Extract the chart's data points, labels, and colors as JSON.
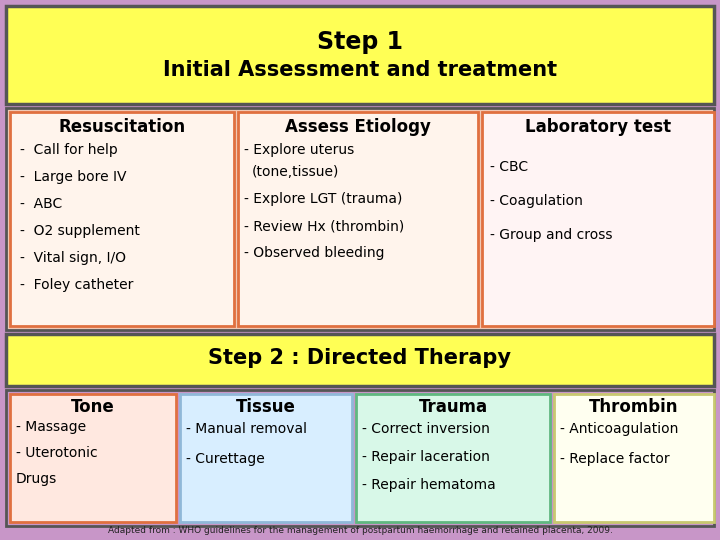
{
  "step1_title_line1": "Step 1",
  "step1_title_line2": "Initial Assessment and treatment",
  "step2_title": "Step 2 : Directed Therapy",
  "footer": "Adapted from : WHO guidelines for the management of postpartum haemorrhage and retained placenta, 2009.",
  "outer_bg": "#c896c8",
  "step1_bg": "#ffff55",
  "step2_bg": "#ffff55",
  "middle_bg": "#f0c8b4",
  "section1_bg": "#fff4ec",
  "section1_border": "#e07040",
  "section2_bg": "#fff4ec",
  "section2_border": "#e07040",
  "section3_bg": "#fff4f4",
  "section3_border": "#e07040",
  "tone_bg": "#ffe8e0",
  "tone_border": "#e07040",
  "tissue_bg": "#d8eeff",
  "tissue_border": "#90b8d8",
  "trauma_bg": "#d8f8e8",
  "trauma_border": "#60b880",
  "thrombin_bg": "#fffff0",
  "thrombin_border": "#c8c870",
  "col1_title": "Resuscitation",
  "col1_items": [
    "-  Call for help",
    "-  Large bore IV",
    "-  ABC",
    "-  O2 supplement",
    "-  Vital sign, I/O",
    "-  Foley catheter"
  ],
  "col2_title": "Assess Etiology",
  "col2_items": [
    "- Explore uterus",
    "(tone,tissue)",
    "- Explore LGT (trauma)",
    "- Review Hx (thrombin)",
    "- Observed bleeding"
  ],
  "col3_title": "Laboratory test",
  "col3_items": [
    "- CBC",
    "- Coagulation",
    "- Group and cross"
  ],
  "tone_title": "Tone",
  "tone_items": [
    "- Massage",
    "- Uterotonic",
    "Drugs"
  ],
  "tissue_title": "Tissue",
  "tissue_items": [
    "- Manual removal",
    "- Curettage"
  ],
  "trauma_title": "Trauma",
  "trauma_items": [
    "- Correct inversion",
    "- Repair laceration",
    "- Repair hematoma"
  ],
  "thrombin_title": "Thrombin",
  "thrombin_items": [
    "- Anticoagulation",
    "- Replace factor"
  ]
}
